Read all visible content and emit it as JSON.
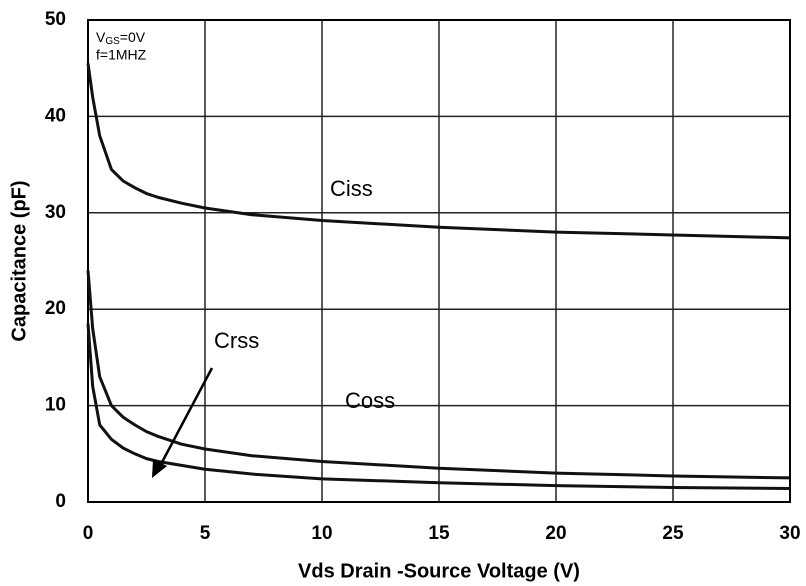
{
  "chart_data": {
    "type": "line",
    "x_label": "Vds Drain -Source Voltage (V)",
    "y_label": "Capacitance  (pF)",
    "condition_vgs": {
      "main": "V",
      "sub": "GS",
      "rest": "=0V"
    },
    "condition_freq": "f=1MHZ",
    "x": [
      0,
      0.2,
      0.5,
      1,
      1.5,
      2,
      2.5,
      3,
      4,
      5,
      7,
      10,
      15,
      20,
      25,
      30
    ],
    "series": [
      {
        "name": "Ciss",
        "color": "#111111",
        "values": [
          45.5,
          42,
          38,
          34.5,
          33.3,
          32.6,
          32,
          31.6,
          31,
          30.5,
          29.8,
          29.2,
          28.5,
          28,
          27.7,
          27.4
        ]
      },
      {
        "name": "Coss",
        "color": "#111111",
        "values": [
          24,
          18,
          13,
          10,
          8.8,
          8,
          7.3,
          6.8,
          6,
          5.5,
          4.8,
          4.2,
          3.5,
          3,
          2.7,
          2.5
        ]
      },
      {
        "name": "Crss",
        "color": "#111111",
        "values": [
          18.5,
          12,
          8,
          6.5,
          5.6,
          5,
          4.5,
          4.2,
          3.8,
          3.4,
          2.9,
          2.4,
          2,
          1.7,
          1.5,
          1.4
        ]
      }
    ],
    "xlim": [
      0,
      30
    ],
    "xticks": [
      0,
      5,
      10,
      15,
      20,
      25,
      30
    ],
    "ylim": [
      0,
      50
    ],
    "yticks": [
      0,
      10,
      20,
      30,
      40,
      50
    ],
    "grid": true
  }
}
